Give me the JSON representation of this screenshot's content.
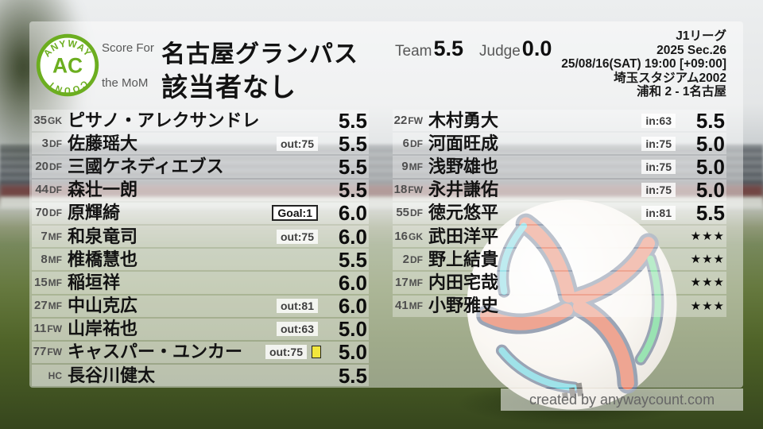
{
  "logo": {
    "arc_top": "ANYWAY",
    "center": "AC",
    "arc_bottom": "COUNT"
  },
  "header": {
    "score_for_label": "Score For",
    "team_name": "名古屋グランパス",
    "mom_label": "the MoM",
    "mom_value": "該当者なし",
    "team_label": "Team",
    "team_score": "5.5",
    "judge_label": "Judge",
    "judge_score": "0.0",
    "league": "J1リーグ",
    "season": "2025 Sec.26",
    "kickoff": "25/08/16(SAT) 19:00 [+09:00]",
    "venue": "埼玉スタジアム2002",
    "result": "浦和 2 - 1名古屋"
  },
  "ratings": {
    "left": [
      {
        "num": "35",
        "pos": "GK",
        "name": "ピサノ・アレクサンドレ",
        "rating": "5.5"
      },
      {
        "num": "3",
        "pos": "DF",
        "name": "佐藤瑶大",
        "badge": "out:75",
        "rating": "5.5"
      },
      {
        "num": "20",
        "pos": "DF",
        "name": "三國ケネディエブス",
        "rating": "5.5"
      },
      {
        "num": "44",
        "pos": "DF",
        "name": "森壮一朗",
        "rating": "5.5"
      },
      {
        "num": "70",
        "pos": "DF",
        "name": "原輝綺",
        "goal_badge": "Goal:1",
        "rating": "6.0"
      },
      {
        "num": "7",
        "pos": "MF",
        "name": "和泉竜司",
        "badge": "out:75",
        "rating": "6.0"
      },
      {
        "num": "8",
        "pos": "MF",
        "name": "椎橋慧也",
        "rating": "5.5"
      },
      {
        "num": "15",
        "pos": "MF",
        "name": "稲垣祥",
        "rating": "6.0"
      },
      {
        "num": "27",
        "pos": "MF",
        "name": "中山克広",
        "badge": "out:81",
        "rating": "6.0"
      },
      {
        "num": "11",
        "pos": "FW",
        "name": "山岸祐也",
        "badge": "out:63",
        "rating": "5.0"
      },
      {
        "num": "77",
        "pos": "FW",
        "name": "キャスパー・ユンカー",
        "badge": "out:75",
        "yellow_card": true,
        "rating": "5.0"
      },
      {
        "num": "",
        "pos": "HC",
        "name": "長谷川健太",
        "rating": "5.5"
      }
    ],
    "right": [
      {
        "num": "22",
        "pos": "FW",
        "name": "木村勇大",
        "badge": "in:63",
        "rating": "5.5"
      },
      {
        "num": "6",
        "pos": "DF",
        "name": "河面旺成",
        "badge": "in:75",
        "rating": "5.0"
      },
      {
        "num": "9",
        "pos": "MF",
        "name": "浅野雄也",
        "badge": "in:75",
        "rating": "5.0"
      },
      {
        "num": "18",
        "pos": "FW",
        "name": "永井謙佑",
        "badge": "in:75",
        "rating": "5.0"
      },
      {
        "num": "55",
        "pos": "DF",
        "name": "徳元悠平",
        "badge": "in:81",
        "rating": "5.5"
      },
      {
        "num": "16",
        "pos": "GK",
        "name": "武田洋平",
        "rating": "★★★"
      },
      {
        "num": "2",
        "pos": "DF",
        "name": "野上結貴",
        "rating": "★★★"
      },
      {
        "num": "17",
        "pos": "MF",
        "name": "内田宅哉",
        "rating": "★★★"
      },
      {
        "num": "41",
        "pos": "MF",
        "name": "小野雅史",
        "rating": "★★★"
      }
    ]
  },
  "footer": {
    "credit": "created by anywaycount.com"
  },
  "colors": {
    "logo_green": "#6cae20",
    "yellow_card": "#f2e73c",
    "rating_black": "#0d0d0d",
    "label_gray": "#585858",
    "ball_orange": "#e05a36",
    "ball_teal": "#4ec9d6",
    "ball_green": "#43cc72",
    "ball_navy": "#33486b"
  }
}
